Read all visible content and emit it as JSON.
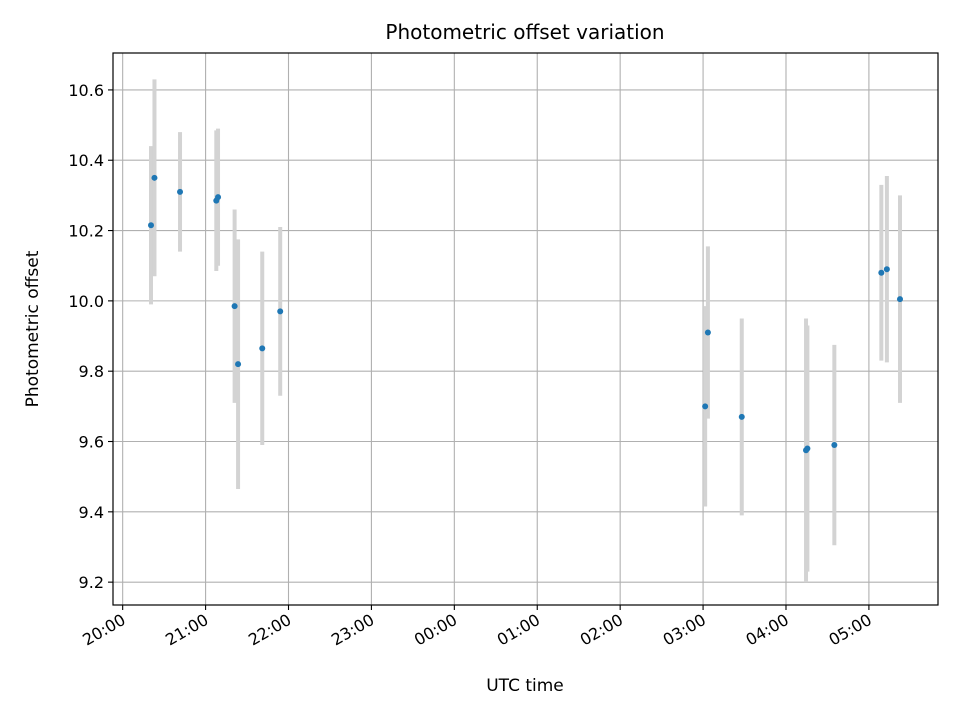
{
  "chart_data": {
    "type": "scatter",
    "title": "Photometric offset variation",
    "xlabel": "UTC time",
    "ylabel": "Photometric offset",
    "x_axis_kind": "time",
    "xlim": [
      "2024-01-01T19:53:00",
      "2024-01-02T05:50:00"
    ],
    "ylim": [
      9.135,
      10.705
    ],
    "x_ticks": [
      {
        "t": "2024-01-01T20:00:00",
        "label": "20:00"
      },
      {
        "t": "2024-01-01T21:00:00",
        "label": "21:00"
      },
      {
        "t": "2024-01-01T22:00:00",
        "label": "22:00"
      },
      {
        "t": "2024-01-01T23:00:00",
        "label": "23:00"
      },
      {
        "t": "2024-01-02T00:00:00",
        "label": "00:00"
      },
      {
        "t": "2024-01-02T01:00:00",
        "label": "01:00"
      },
      {
        "t": "2024-01-02T02:00:00",
        "label": "02:00"
      },
      {
        "t": "2024-01-02T03:00:00",
        "label": "03:00"
      },
      {
        "t": "2024-01-02T04:00:00",
        "label": "04:00"
      },
      {
        "t": "2024-01-02T05:00:00",
        "label": "05:00"
      }
    ],
    "y_ticks": [
      9.2,
      9.4,
      9.6,
      9.8,
      10.0,
      10.2,
      10.4,
      10.6
    ],
    "grid": true,
    "colors": {
      "point": "#1f77b4",
      "errorbar": "#d3d3d3",
      "grid": "#b0b0b0"
    },
    "points": [
      {
        "t": "2024-01-01T20:20:30",
        "y": 10.215,
        "err": 0.225
      },
      {
        "t": "2024-01-01T20:23:00",
        "y": 10.35,
        "err": 0.28
      },
      {
        "t": "2024-01-01T20:41:30",
        "y": 10.31,
        "err": 0.17
      },
      {
        "t": "2024-01-01T21:07:45",
        "y": 10.285,
        "err": 0.2
      },
      {
        "t": "2024-01-01T21:09:00",
        "y": 10.295,
        "err": 0.195
      },
      {
        "t": "2024-01-01T21:21:00",
        "y": 9.985,
        "err": 0.275
      },
      {
        "t": "2024-01-01T21:23:30",
        "y": 9.82,
        "err": 0.355
      },
      {
        "t": "2024-01-01T21:41:00",
        "y": 9.865,
        "err": 0.275
      },
      {
        "t": "2024-01-01T21:54:00",
        "y": 9.97,
        "err": 0.24
      },
      {
        "t": "2024-01-02T03:01:30",
        "y": 9.7,
        "err": 0.285
      },
      {
        "t": "2024-01-02T03:03:30",
        "y": 9.91,
        "err": 0.245
      },
      {
        "t": "2024-01-02T03:28:00",
        "y": 9.67,
        "err": 0.28
      },
      {
        "t": "2024-01-02T04:14:30",
        "y": 9.575,
        "err": 0.375
      },
      {
        "t": "2024-01-02T04:15:30",
        "y": 9.58,
        "err": 0.35
      },
      {
        "t": "2024-01-02T04:35:00",
        "y": 9.59,
        "err": 0.285
      },
      {
        "t": "2024-01-02T05:09:00",
        "y": 10.08,
        "err": 0.25
      },
      {
        "t": "2024-01-02T05:13:00",
        "y": 10.09,
        "err": 0.265
      },
      {
        "t": "2024-01-02T05:22:30",
        "y": 10.005,
        "err": 0.295
      }
    ]
  }
}
